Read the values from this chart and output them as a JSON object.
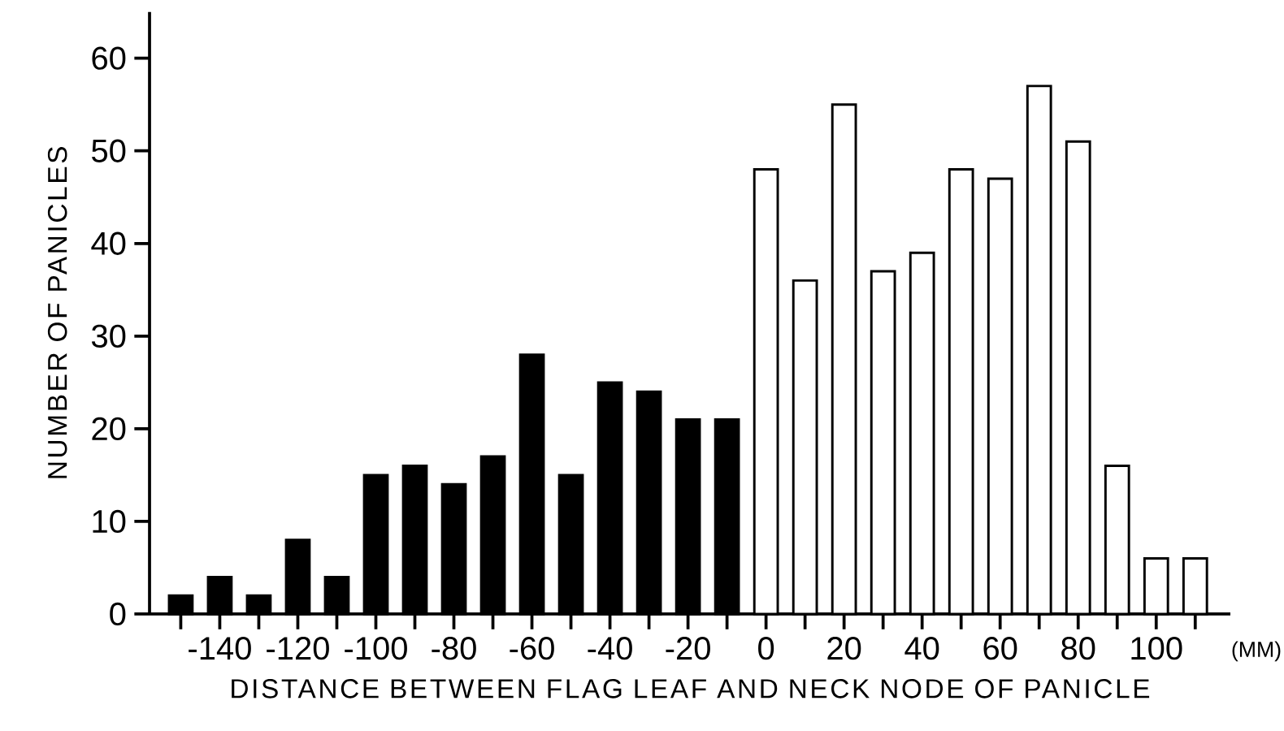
{
  "chart_data": {
    "type": "bar",
    "xlabel": "DISTANCE BETWEEN FLAG LEAF AND NECK NODE OF PANICLE",
    "ylabel": "NUMBER OF PANICLES",
    "annotations": [
      "(MM)"
    ],
    "x": [
      -150,
      -140,
      -130,
      -120,
      -110,
      -100,
      -90,
      -80,
      -70,
      -60,
      -50,
      -40,
      -30,
      -20,
      -10,
      0,
      10,
      20,
      30,
      40,
      50,
      60,
      70,
      80,
      90,
      100,
      110
    ],
    "values": [
      2,
      4,
      2,
      8,
      4,
      15,
      16,
      14,
      17,
      28,
      15,
      25,
      24,
      21,
      21,
      48,
      36,
      55,
      37,
      39,
      48,
      47,
      57,
      51,
      16,
      6,
      6
    ],
    "colors": [
      "#000000",
      "#000000",
      "#000000",
      "#000000",
      "#000000",
      "#000000",
      "#000000",
      "#000000",
      "#000000",
      "#000000",
      "#000000",
      "#000000",
      "#000000",
      "#000000",
      "#000000",
      "#ffffff",
      "#ffffff",
      "#ffffff",
      "#ffffff",
      "#ffffff",
      "#ffffff",
      "#ffffff",
      "#ffffff",
      "#ffffff",
      "#ffffff",
      "#ffffff",
      "#ffffff"
    ],
    "xlim": [
      -158,
      119
    ],
    "ylim": [
      0,
      65
    ],
    "xticks": [
      {
        "value": -150,
        "label": null
      },
      -140,
      {
        "value": -130,
        "label": null
      },
      -120,
      {
        "value": -110,
        "label": null
      },
      -100,
      {
        "value": -90,
        "label": null
      },
      -80,
      {
        "value": -70,
        "label": null
      },
      -60,
      {
        "value": -50,
        "label": null
      },
      -40,
      {
        "value": -30,
        "label": null
      },
      -20,
      {
        "value": -10,
        "label": null
      },
      0,
      {
        "value": 10,
        "label": null
      },
      20,
      {
        "value": 30,
        "label": null
      },
      40,
      {
        "value": 50,
        "label": null
      },
      60,
      {
        "value": 70,
        "label": null
      },
      80,
      {
        "value": 90,
        "label": null
      },
      100,
      {
        "value": 110,
        "label": null
      }
    ],
    "yticks": [
      0,
      10,
      20,
      30,
      40,
      50,
      60
    ],
    "grid": false
  }
}
